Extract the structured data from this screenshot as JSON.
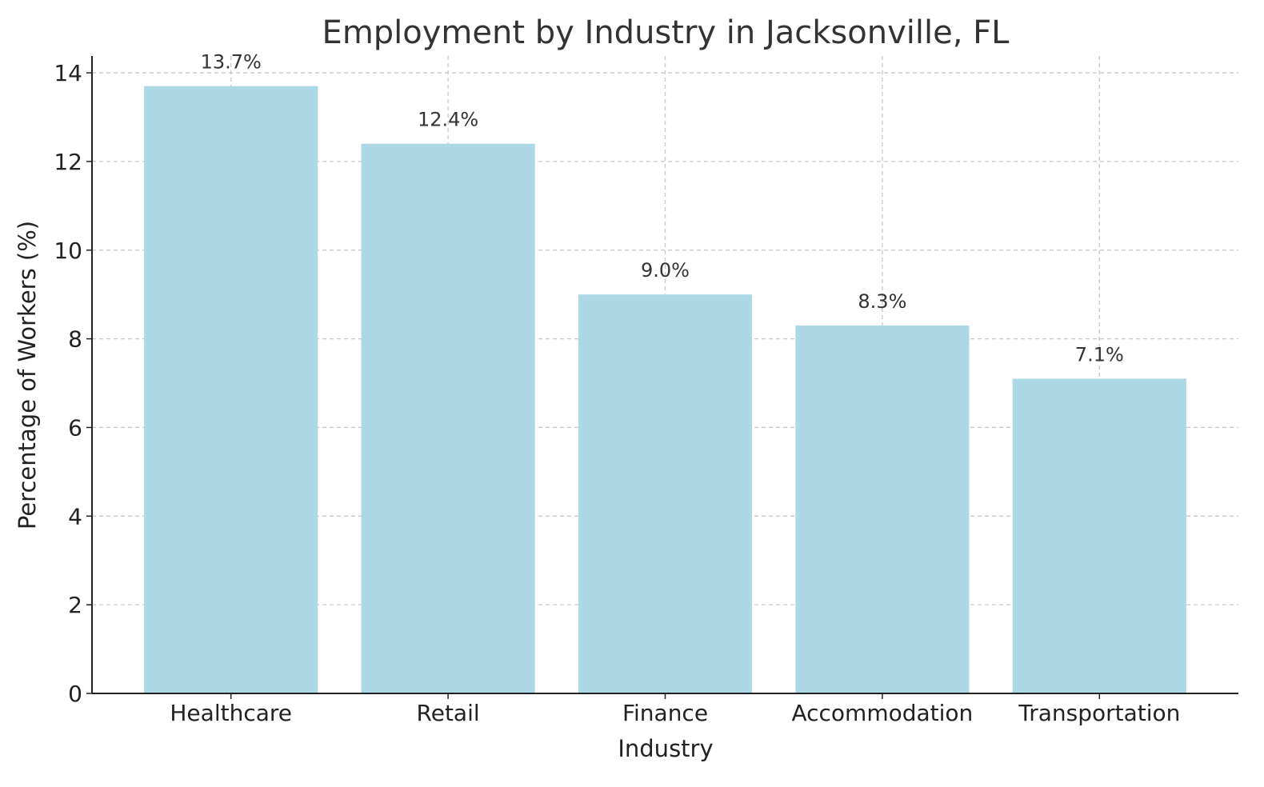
{
  "chart_data": {
    "type": "bar",
    "title": "Employment by Industry in Jacksonville, FL",
    "xlabel": "Industry",
    "ylabel": "Percentage of Workers (%)",
    "categories": [
      "Healthcare",
      "Retail",
      "Finance",
      "Accommodation",
      "Transportation"
    ],
    "values": [
      13.7,
      12.4,
      9.0,
      8.3,
      7.1
    ],
    "data_labels": [
      "13.7%",
      "12.4%",
      "9.0%",
      "8.3%",
      "7.1%"
    ],
    "ylim": [
      0,
      14.38
    ],
    "yticks": [
      0,
      2,
      4,
      6,
      8,
      10,
      12,
      14
    ],
    "grid": true,
    "bar_color": "#add8e6",
    "text_color": "#333333"
  }
}
